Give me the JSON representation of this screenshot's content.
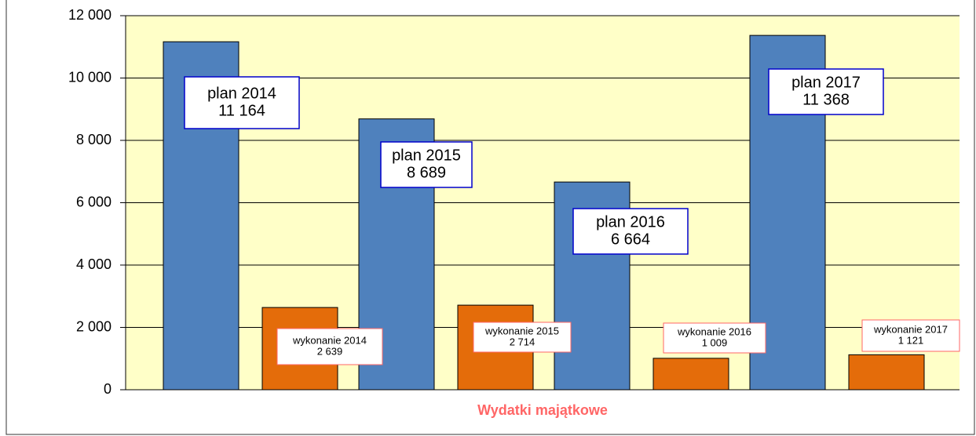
{
  "chart_data": {
    "type": "bar",
    "x_label": "Wydatki majątkowe",
    "categories": [
      null,
      null,
      null,
      null
    ],
    "series": [
      {
        "name": "plan",
        "color": "#4f81bd",
        "values": [
          11164,
          8689,
          6664,
          11368
        ],
        "label_titles": [
          "plan 2014",
          "plan 2015",
          "plan 2016",
          "plan 2017"
        ],
        "value_labels": [
          "11 164",
          "8 689",
          "6 664",
          "11 368"
        ]
      },
      {
        "name": "wykonanie",
        "color": "#e46c0a",
        "values": [
          2639,
          2714,
          1009,
          1121
        ],
        "label_titles": [
          "wykonanie 2014",
          "wykonanie 2015",
          "wykonanie 2016",
          "wykonanie 2017"
        ],
        "value_labels": [
          "2 639",
          "2 714",
          "1 009",
          "1 121"
        ]
      }
    ],
    "ylim": [
      0,
      12000
    ],
    "yticks": [
      0,
      {
        "value": 2000,
        "label": "2 000"
      },
      {
        "value": 4000,
        "label": "4 000"
      },
      {
        "value": 6000,
        "label": "6 000"
      },
      {
        "value": 8000,
        "label": "8 000"
      },
      {
        "value": 10000,
        "label": "10 000"
      },
      {
        "value": 12000,
        "label": "12 000"
      }
    ],
    "grid": true,
    "plot_background": "#ffffc8"
  }
}
